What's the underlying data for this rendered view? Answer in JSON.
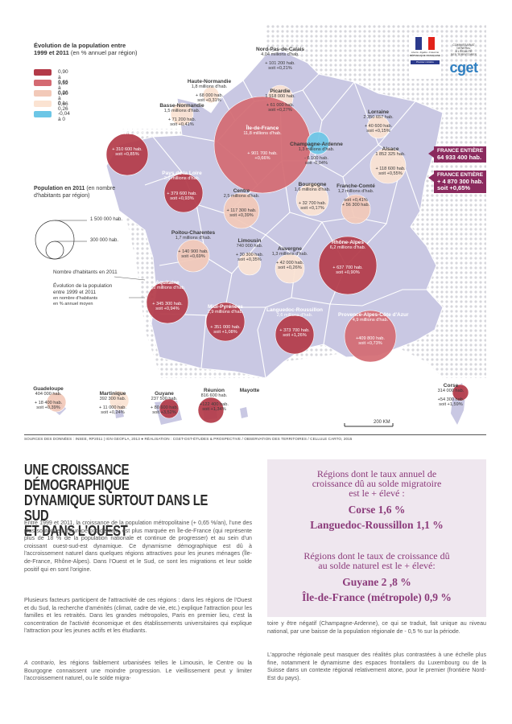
{
  "map": {
    "legend": {
      "title": "Évolution de la population entre",
      "title_line2": "1999 et 2011",
      "title_unit": "(en % annuel par région)",
      "classes": [
        {
          "label": "0,90 à 3,52",
          "color": "#b33a48"
        },
        {
          "label": "0,66 à 0,90",
          "color": "#d46a72"
        },
        {
          "label": "0,26 à 0,66",
          "color": "#f2c9b8"
        },
        {
          "label": "0 à 0,26",
          "color": "#fbe3d2"
        },
        {
          "label": "-0,04 à 0",
          "color": "#6cc6e6"
        }
      ],
      "pop_title": "Population en 2011",
      "pop_title_unit": "(en nombre",
      "pop_title_line2": "d'habitants par région)",
      "pop_big": "1 500 000 hab.",
      "pop_small": "300 000 hab.",
      "key_inhabitants": "Nombre d'habitants en 2011",
      "key_evolution_1": "Évolution de la population",
      "key_evolution_2": "entre 1999 et 2011",
      "key_evolution_3": "en nombre d'habitants",
      "key_evolution_4": "en % annuel moyen"
    },
    "logo": {
      "ministry_1": "Liberté • Égalité • Fraternité",
      "ministry_2": "RÉPUBLIQUE FRANÇAISE",
      "ministry_3": "Premier ministre",
      "cget_1": "COMMISSARIAT",
      "cget_2": "GÉNÉRAL",
      "cget_3": "À L'ÉGALITÉ",
      "cget_4": "DES TERRITOIRES",
      "brand": "cget"
    },
    "france_total": {
      "line1": "FRANCE ENTIÈRE",
      "line2": "64 933 400 hab.",
      "line3": "FRANCE ENTIÈRE",
      "line4": "+ 4 870 300 hab.",
      "line5": "soit +0,65%"
    },
    "regions": [
      {
        "name": "Nord-Pas-de-Calais",
        "pop": "4,04 millions d'hab.",
        "gain": "+ 101 200 hab.",
        "rate": "soit +0,21%"
      },
      {
        "name": "Picardie",
        "pop": "1 918 000 hab.",
        "gain": "+ 61 000 hab.",
        "rate": "soit +0,27%"
      },
      {
        "name": "Haute-Normandie",
        "pop": "1,8 millions d'hab.",
        "gain": "+ 68 000 hab.",
        "rate": "soit +0,31%"
      },
      {
        "name": "Basse-Normandie",
        "pop": "1,5 millions d'hab.",
        "gain": "+ 71 200 hab.",
        "rate": "soit +0,41%"
      },
      {
        "name": "Île-de-France",
        "pop": "11,8 millions d'hab.",
        "gain": "+ 901 700 hab.",
        "rate": "+0,66%"
      },
      {
        "name": "Champagne-Ardenne",
        "pop": "1,3 millions d'hab.",
        "gain": "- 6 100 hab.",
        "rate": "soit -0,04%"
      },
      {
        "name": "Lorraine",
        "pop": "2 350 657 hab.",
        "gain": "+ 40 600 hab.",
        "rate": "soit +0,15%"
      },
      {
        "name": "Alsace",
        "pop": "1 852 325 hab.",
        "gain": "+ 118 600 hab.",
        "rate": "soit +0,55%"
      },
      {
        "name": "Bretagne",
        "pop": "3,2 millions d'hab.",
        "gain": "+ 310 600 hab.",
        "rate": "soit +0,85%"
      },
      {
        "name": "Pays de la Loire",
        "pop": "3,6 millions d'hab.",
        "gain": "+ 379 600 hab.",
        "rate": "soit +0,93%"
      },
      {
        "name": "Centre",
        "pop": "2,5 millions d'hab.",
        "gain": "+ 117 300 hab.",
        "rate": "soit +0,39%"
      },
      {
        "name": "Bourgogne",
        "pop": "1,6 millions d'hab.",
        "gain": "+ 32 700 hab.",
        "rate": "soit +0,17%"
      },
      {
        "name": "Franche-Comté",
        "pop": "1,2 millions d'hab.",
        "gain": "soit +0,41%",
        "rate": "+ 56 300 hab."
      },
      {
        "name": "Poitou-Charentes",
        "pop": "1,7 millions d'hab.",
        "gain": "+ 140 900 hab.",
        "rate": "soit +0,69%"
      },
      {
        "name": "Limousin",
        "pop": "740 000 hab.",
        "gain": "+ 30 300 hab.",
        "rate": "soit +0,35%"
      },
      {
        "name": "Auvergne",
        "pop": "1,3 millions d'hab.",
        "gain": "+ 42 000 hab.",
        "rate": "soit +0,26%"
      },
      {
        "name": "Rhône-Alpes",
        "pop": "6,2 millions d'hab.",
        "gain": "+ 637 700 hab.",
        "rate": "soit +0,90%"
      },
      {
        "name": "Aquitaine",
        "pop": "3,2 millions d'hab.",
        "gain": "+ 345 300 hab.",
        "rate": "soit +0,94%"
      },
      {
        "name": "Midi-Pyrénées",
        "pop": "2,9 millions d'hab.",
        "gain": "+ 351 000 hab.",
        "rate": "soit +1,08%"
      },
      {
        "name": "Languedoc-Roussillon",
        "pop": "2,6 millions d'hab.",
        "gain": "+ 373 700 hab.",
        "rate": "soit +1,26%"
      },
      {
        "name": "Provence-Alpes-Côte d'Azur",
        "pop": "4,9 millions d'hab.",
        "gain": "+409 800 hab.",
        "rate": "soit +0,73%"
      },
      {
        "name": "Corse",
        "pop": "314 000 hab.",
        "gain": "+54 300 hab.",
        "rate": "soit +1,59%"
      },
      {
        "name": "Guadeloupe",
        "pop": "404 000 hab.",
        "gain": "+ 18 400 hab.",
        "rate": "soit +0,39%"
      },
      {
        "name": "Martinique",
        "pop": "392 300 hab.",
        "gain": "+ 11 000 hab.",
        "rate": "soit +0,24%"
      },
      {
        "name": "Guyane",
        "pop": "237 500 hab.",
        "gain": "+ 80 600 hab.",
        "rate": "soit +3,52%"
      },
      {
        "name": "Réunion",
        "pop": "816 600 hab.",
        "gain": "+122 400 hab.",
        "rate": "soit +1,34%"
      },
      {
        "name": "Mayotte",
        "pop": "",
        "gain": "",
        "rate": ""
      }
    ],
    "scale": "200 KM"
  },
  "credits": "SOURCES DES DONNÉES : INSEE, RP2011 | IGN GEOFLA, 2013 ● RÉALISATION : CGET-DST-ÉTUDES & PROSPECTIVE / OBSERVATION DES TERRITOIRES / CELLULE CARTO, 2015",
  "article": {
    "headline_1": "UNE CROISSANCE DÉMOGRAPHIQUE",
    "headline_2": "DYNAMIQUE SURTOUT DANS LE SUD",
    "headline_3": "ET DANS L'OUEST",
    "p1": "Entre 1999 et 2011, la croissance de la population métropolitaine (+ 0,65 %/an), l'une des plus soutenues d'Europe occidentale, est plus marquée en Île-de-France (qui représente plus de 18 % de la population nationale et continue de progresser) et au sein d'un croissant ouest-sud-est dynamique. Ce dynamisme démographique est dû à l'accroissement naturel dans quelques régions attractives pour les jeunes ménages (Île-de-France, Rhône-Alpes). Dans l'Ouest et le Sud, ce sont les migrations et leur solde positif qui en sont l'origine.",
    "p2": "Plusieurs facteurs participent de l'attractivité de ces régions : dans les régions de l'Ouest et du Sud, la recherche d'aménités (climat, cadre de vie, etc.) explique l'attraction pour les familles et les retraités. Dans les grandes métropoles, Paris en premier lieu, c'est la concentration de l'activité économique et des établissements universitaires qui explique l'attraction pour les jeunes actifs et les étudiants.",
    "p3_em": "A contrario",
    "p3": ", les régions faiblement urbanisées telles le Limousin, le Centre ou la Bourgogne connaissent une moindre progression. Le vieillissement peut y limiter l'accroissement naturel, ou le solde migra-",
    "p4": "toire y être négatif (Champagne-Ardenne), ce qui se traduit, fait unique au niveau national, par une baisse de la population régionale de - 0,5 % sur la période.",
    "p5": "L'approche régionale peut masquer des réalités plus contrastées à une échelle plus fine, notamment le dynamisme des espaces frontaliers du Luxembourg ou de la Suisse dans un contexte régional relativement atone, pour le premier (frontière Nord-Est du pays)."
  },
  "callout": {
    "q1_l1": "Régions dont le taux annuel de",
    "q1_l2": "croissance dû au solde migratoire",
    "q1_l3": "est le + élevé :",
    "a1_l1": "Corse 1,6 %",
    "a1_l2": "Languedoc-Roussillon 1,1 %",
    "q2_l1": "Régions dont le taux de croissance dû",
    "q2_l2": "au solde naturel est le + élevé:",
    "a2_l1": "Guyane 2 ,8 %",
    "a2_l2": "Île-de-France (métropole) 0,9 %"
  }
}
